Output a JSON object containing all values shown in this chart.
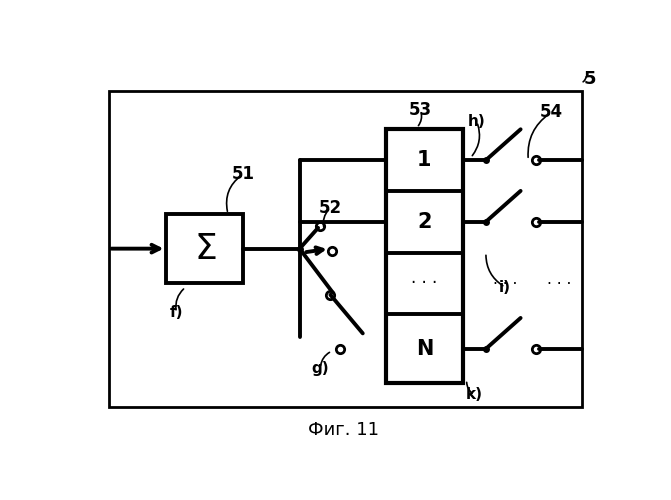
{
  "fig_label": "Фиг. 11",
  "label_5": "5",
  "label_51": "51",
  "label_52": "52",
  "label_53": "53",
  "label_54": "54",
  "label_f": "f)",
  "label_g": "g)",
  "label_h": "h)",
  "label_i": "i)",
  "label_k": "k)",
  "bg_color": "#ffffff"
}
